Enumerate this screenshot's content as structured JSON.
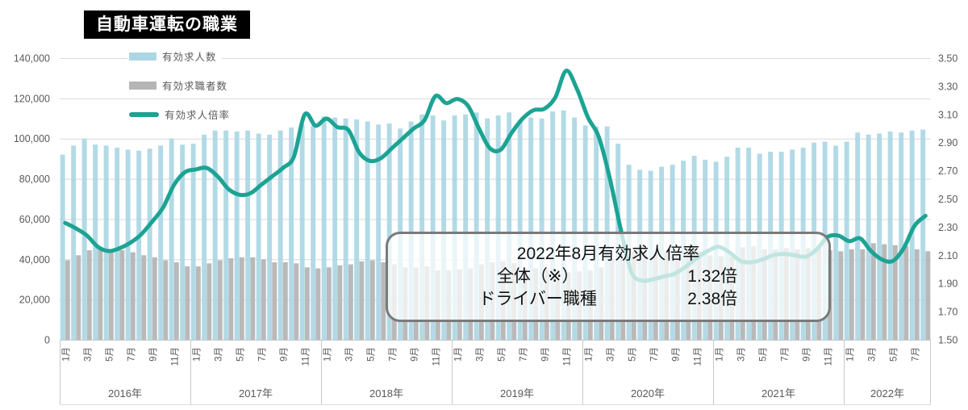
{
  "title": {
    "text": "自動車運転の職業"
  },
  "legend": [
    {
      "label": "有効求人数",
      "type": "bar",
      "color": "#ABD7E4"
    },
    {
      "label": "有効求職者数",
      "type": "bar",
      "color": "#B5B5B5"
    },
    {
      "label": "有効求人倍率",
      "type": "line",
      "color": "#1CA393"
    }
  ],
  "annotation": {
    "title": "2022年8月有効求人倍率",
    "rows": [
      {
        "label": "全体（※）",
        "value": "1.32倍"
      },
      {
        "label": "ドライバー職種",
        "value": "2.38倍"
      }
    ]
  },
  "chart_data": {
    "type": "bar+line-combo",
    "title": "自動車運転の職業",
    "x_start": "2016-01",
    "x_end": "2022-08",
    "years": [
      {
        "label": "2016年",
        "months": 12
      },
      {
        "label": "2017年",
        "months": 12
      },
      {
        "label": "2018年",
        "months": 12
      },
      {
        "label": "2019年",
        "months": 12
      },
      {
        "label": "2020年",
        "months": 12
      },
      {
        "label": "2021年",
        "months": 12
      },
      {
        "label": "2022年",
        "months": 8
      }
    ],
    "month_tick_labels": [
      "1月",
      "3月",
      "5月",
      "7月",
      "9月",
      "11月"
    ],
    "left_axis": {
      "min": 0,
      "max": 140000,
      "step": 20000,
      "tick_labels": [
        "0",
        "20,000",
        "40,000",
        "60,000",
        "80,000",
        "100,000",
        "120,000",
        "140,000"
      ]
    },
    "right_axis": {
      "min": 1.5,
      "max": 3.5,
      "step": 0.2,
      "tick_labels": [
        "1.50",
        "1.70",
        "1.90",
        "2.10",
        "2.30",
        "2.50",
        "2.70",
        "2.90",
        "3.10",
        "3.30",
        "3.50"
      ]
    },
    "grid": true,
    "legend_position": "top-left",
    "series": [
      {
        "name": "有効求人数",
        "type": "bar",
        "axis": "left",
        "color": "#ABD7E4",
        "values": [
          92000,
          96500,
          100000,
          97000,
          96500,
          95500,
          94500,
          94000,
          95000,
          96500,
          100000,
          97000,
          97500,
          102000,
          104000,
          104000,
          103500,
          104000,
          102500,
          102000,
          104000,
          105500,
          107000,
          106500,
          111000,
          110500,
          110000,
          109500,
          108500,
          107000,
          107500,
          105000,
          108500,
          112000,
          111500,
          109000,
          111500,
          112000,
          113000,
          110000,
          111500,
          113000,
          109000,
          110500,
          110000,
          113500,
          114000,
          110500,
          106500,
          106000,
          106000,
          97500,
          87000,
          84500,
          84000,
          86000,
          87000,
          89000,
          91500,
          89500,
          88500,
          91000,
          95500,
          95500,
          92500,
          93500,
          93500,
          94500,
          95500,
          98000,
          98500,
          96500,
          98500,
          103000,
          102000,
          102500,
          103500,
          103000,
          104000,
          104500
        ]
      },
      {
        "name": "有効求職者数",
        "type": "bar",
        "axis": "left",
        "color": "#B5B5B5",
        "values": [
          39500,
          42000,
          44500,
          45000,
          45000,
          44500,
          43500,
          42000,
          41000,
          39500,
          38500,
          36500,
          36500,
          38000,
          39500,
          40500,
          41000,
          41000,
          40000,
          38500,
          38500,
          38000,
          36000,
          35500,
          36000,
          37000,
          37500,
          39000,
          39500,
          38500,
          37500,
          36000,
          36000,
          36500,
          34500,
          34500,
          35000,
          35500,
          37500,
          38500,
          39000,
          38000,
          35500,
          35500,
          35000,
          35000,
          33500,
          34000,
          34500,
          36000,
          40000,
          42500,
          44000,
          44000,
          43500,
          44000,
          44500,
          44000,
          44000,
          42000,
          41500,
          41500,
          46000,
          46500,
          45000,
          45000,
          45500,
          45000,
          45500,
          45500,
          44500,
          44000,
          45000,
          45000,
          48000,
          47500,
          47000,
          46500,
          45000,
          44000
        ]
      },
      {
        "name": "有効求人倍率",
        "type": "line",
        "axis": "right",
        "color": "#1CA393",
        "values": [
          2.33,
          2.29,
          2.24,
          2.16,
          2.13,
          2.15,
          2.19,
          2.25,
          2.34,
          2.44,
          2.6,
          2.69,
          2.71,
          2.72,
          2.66,
          2.57,
          2.53,
          2.54,
          2.6,
          2.66,
          2.72,
          2.8,
          3.1,
          3.02,
          3.07,
          3.01,
          2.99,
          2.83,
          2.77,
          2.79,
          2.86,
          2.93,
          3.0,
          3.06,
          3.23,
          3.18,
          3.21,
          3.16,
          3.0,
          2.86,
          2.85,
          2.97,
          3.07,
          3.13,
          3.14,
          3.22,
          3.41,
          3.28,
          3.08,
          2.94,
          2.65,
          2.29,
          1.98,
          1.92,
          1.93,
          1.95,
          1.97,
          2.02,
          2.08,
          2.13,
          2.16,
          2.12,
          2.06,
          2.05,
          2.07,
          2.1,
          2.11,
          2.1,
          2.09,
          2.14,
          2.23,
          2.24,
          2.2,
          2.22,
          2.13,
          2.07,
          2.06,
          2.15,
          2.31,
          2.38
        ]
      }
    ],
    "colors": {
      "grid": "#D9D9D9",
      "axis_text": "#595959",
      "annotation_border": "#7A7A7A",
      "title_bg": "#000000",
      "title_text": "#FFFFFF"
    }
  }
}
